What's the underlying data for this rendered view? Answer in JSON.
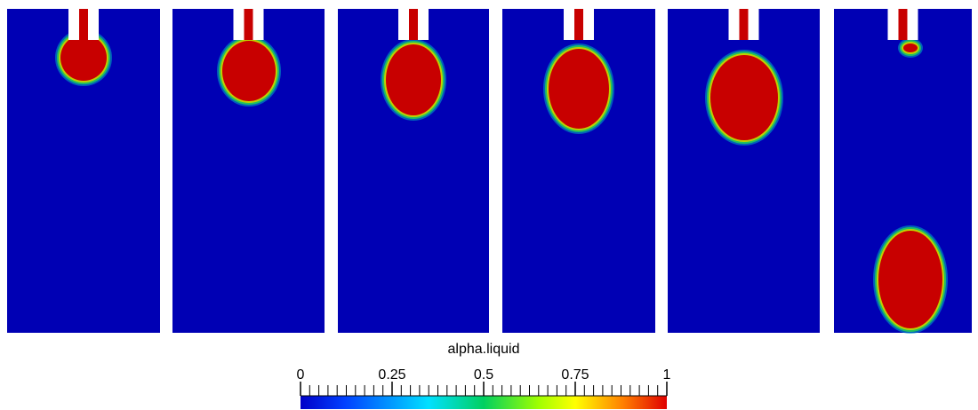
{
  "colorbar": {
    "title": "alpha.liquid",
    "range": [
      0,
      1
    ],
    "ticks": [
      0,
      0.25,
      0.5,
      0.75,
      1
    ]
  }
}
